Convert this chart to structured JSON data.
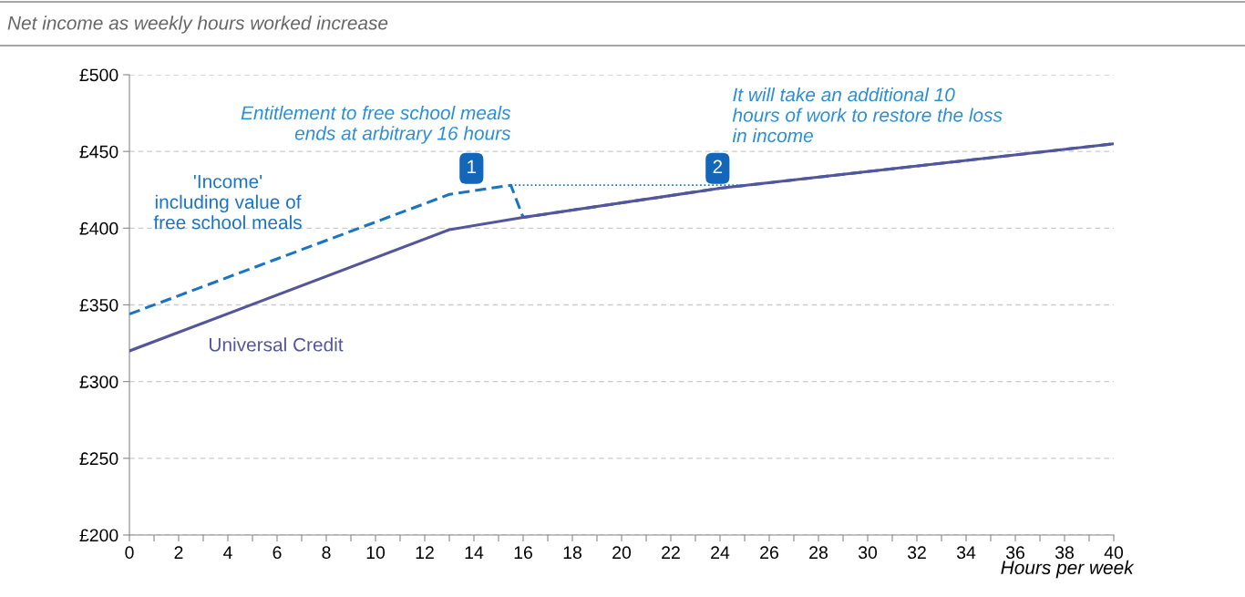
{
  "chart_data": {
    "type": "line",
    "title": "Net income as weekly hours worked increase",
    "xlabel": "Hours per week",
    "series": [
      {
        "name": "'Income'\nincluding value of\nfree school meals",
        "color": "#1a74c4",
        "line_style": "dashed",
        "x": [
          0,
          13,
          15.5,
          16,
          24,
          40
        ],
        "values": [
          344,
          422,
          428,
          407,
          426,
          455
        ]
      },
      {
        "name": "Universal Credit",
        "color": "#55559c",
        "line_style": "solid",
        "x": [
          0,
          13,
          16,
          24,
          40
        ],
        "values": [
          320,
          399,
          407,
          426,
          455
        ]
      },
      {
        "color": "#1a74c4",
        "line_style": "dotted",
        "x": [
          15.5,
          25
        ],
        "values": [
          428,
          428
        ]
      }
    ],
    "xlim": [
      0,
      40
    ],
    "xticks": [
      0,
      {
        "value": 1,
        "label": null
      },
      2,
      {
        "value": 3,
        "label": null
      },
      4,
      {
        "value": 5,
        "label": null
      },
      6,
      {
        "value": 7,
        "label": null
      },
      8,
      {
        "value": 9,
        "label": null
      },
      10,
      {
        "value": 11,
        "label": null
      },
      12,
      {
        "value": 13,
        "label": null
      },
      14,
      {
        "value": 15,
        "label": null
      },
      16,
      {
        "value": 17,
        "label": null
      },
      18,
      {
        "value": 19,
        "label": null
      },
      20,
      {
        "value": 21,
        "label": null
      },
      22,
      {
        "value": 23,
        "label": null
      },
      24,
      {
        "value": 25,
        "label": null
      },
      26,
      {
        "value": 27,
        "label": null
      },
      28,
      {
        "value": 29,
        "label": null
      },
      30,
      {
        "value": 31,
        "label": null
      },
      32,
      {
        "value": 33,
        "label": null
      },
      34,
      {
        "value": 35,
        "label": null
      },
      36,
      {
        "value": 37,
        "label": null
      },
      38,
      {
        "value": 39,
        "label": null
      },
      40
    ],
    "ylim": [
      200,
      500
    ],
    "yticks": [
      {
        "value": 200,
        "label": "£200"
      },
      {
        "value": 250,
        "label": "£250"
      },
      {
        "value": 300,
        "label": "£300"
      },
      {
        "value": 350,
        "label": "£350"
      },
      {
        "value": 400,
        "label": "£400"
      },
      {
        "value": 450,
        "label": "£450"
      },
      {
        "value": 500,
        "label": "£500"
      }
    ],
    "grid": "y",
    "legend": false,
    "marker": "none",
    "annotations": [
      "Entitlement to free school meals\nends at arbitrary 16 hours",
      "It will take an additional 10\nhours of work to restore the loss\nin income",
      {
        "text": "1",
        "x": 13.9,
        "y": 439
      },
      {
        "text": "2",
        "x": 23.9,
        "y": 439
      }
    ]
  }
}
